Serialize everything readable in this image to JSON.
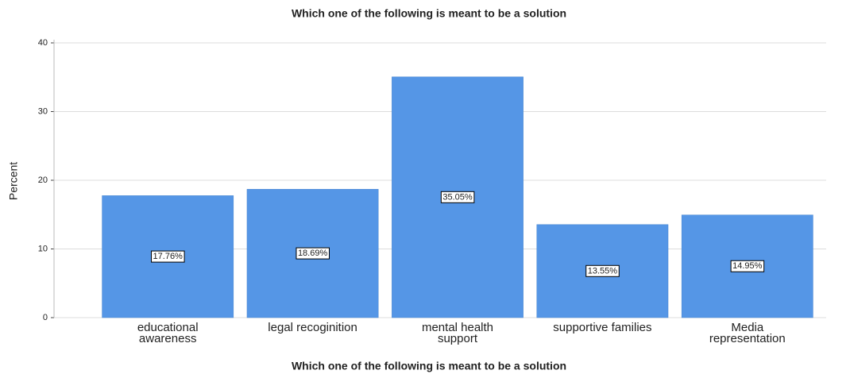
{
  "chart_data": {
    "type": "bar",
    "title": "Which one of the following is meant to be a solution",
    "x_label": "Which one of the following is meant to be a solution",
    "y_label": "Percent",
    "categories": [
      "educational\nawareness",
      "legal recoginition",
      "mental health\nsupport",
      "supportive families",
      "Media\nrepresentation"
    ],
    "values": [
      17.76,
      18.69,
      35.05,
      13.55,
      14.95
    ],
    "value_labels": [
      "17.76%",
      "18.69%",
      "35.05%",
      "13.55%",
      "14.95%"
    ],
    "color": "#5596e6",
    "ylim": [
      0,
      40
    ],
    "yticks": [
      0,
      10,
      20,
      30,
      40
    ],
    "grid": true
  }
}
